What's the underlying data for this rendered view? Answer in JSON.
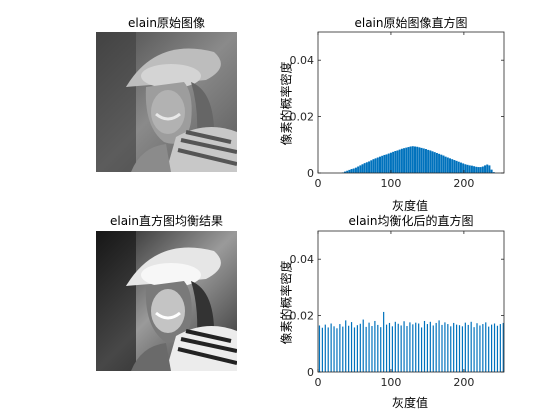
{
  "panels": {
    "original_image": {
      "title": "elain原始图像"
    },
    "equalized_image": {
      "title": "elain直方图均衡结果"
    }
  },
  "chart_data": [
    {
      "type": "bar",
      "title": "elain原始图像直方图",
      "xlabel": "灰度值",
      "ylabel": "像素的概率密度",
      "xlim": [
        0,
        255
      ],
      "ylim": [
        0,
        0.05
      ],
      "xticks": [
        0,
        100,
        200
      ],
      "yticks": [
        0,
        0.02,
        0.04
      ],
      "ytick_labels": [
        "0",
        "0.02",
        "0.04"
      ],
      "color": "#0072BD",
      "grid": false,
      "x": [
        34,
        37,
        40,
        43,
        46,
        49,
        52,
        55,
        58,
        61,
        64,
        67,
        70,
        73,
        76,
        79,
        82,
        85,
        88,
        91,
        94,
        97,
        100,
        103,
        106,
        109,
        112,
        115,
        118,
        121,
        124,
        127,
        130,
        133,
        136,
        139,
        142,
        145,
        148,
        151,
        154,
        157,
        160,
        163,
        166,
        169,
        172,
        175,
        178,
        181,
        184,
        187,
        190,
        193,
        196,
        199,
        202,
        205,
        208,
        211,
        214,
        217,
        220,
        223,
        226,
        229,
        232,
        235,
        238,
        241
      ],
      "values": [
        0.0002,
        0.0005,
        0.0008,
        0.0011,
        0.0014,
        0.0016,
        0.0019,
        0.0023,
        0.0027,
        0.0031,
        0.0035,
        0.0038,
        0.0041,
        0.0045,
        0.0049,
        0.0052,
        0.0055,
        0.0058,
        0.0061,
        0.0064,
        0.0066,
        0.0069,
        0.0072,
        0.0075,
        0.0078,
        0.008,
        0.0083,
        0.0086,
        0.0088,
        0.009,
        0.0092,
        0.0094,
        0.0095,
        0.0094,
        0.0093,
        0.0091,
        0.0089,
        0.0087,
        0.0085,
        0.0082,
        0.008,
        0.0077,
        0.0074,
        0.0071,
        0.0068,
        0.0065,
        0.0062,
        0.0058,
        0.0055,
        0.0052,
        0.0049,
        0.0046,
        0.0043,
        0.004,
        0.0037,
        0.0034,
        0.0031,
        0.0029,
        0.0027,
        0.0026,
        0.0024,
        0.0022,
        0.0021,
        0.0021,
        0.0023,
        0.0027,
        0.003,
        0.0027,
        0.0012,
        0.0003
      ]
    },
    {
      "type": "bar",
      "title": "elain均衡化后的直方图",
      "xlabel": "灰度值",
      "ylabel": "像素的概率密度",
      "xlim": [
        0,
        255
      ],
      "ylim": [
        0,
        0.05
      ],
      "xticks": [
        0,
        100,
        200
      ],
      "yticks": [
        0,
        0.02,
        0.04
      ],
      "ytick_labels": [
        "0",
        "0.02",
        "0.04"
      ],
      "color": "#0072BD",
      "grid": false,
      "x": [
        2,
        6,
        10,
        14,
        18,
        22,
        26,
        30,
        34,
        38,
        42,
        46,
        50,
        54,
        58,
        62,
        66,
        70,
        74,
        78,
        82,
        86,
        90,
        94,
        98,
        102,
        106,
        110,
        114,
        118,
        122,
        126,
        130,
        134,
        138,
        142,
        146,
        150,
        154,
        158,
        162,
        166,
        170,
        174,
        178,
        182,
        186,
        190,
        194,
        198,
        202,
        206,
        210,
        214,
        218,
        222,
        226,
        230,
        234,
        238,
        242,
        246,
        250,
        254
      ],
      "values": [
        0.0165,
        0.0157,
        0.0168,
        0.0158,
        0.0172,
        0.0162,
        0.0155,
        0.017,
        0.0161,
        0.0183,
        0.0164,
        0.0177,
        0.0158,
        0.0166,
        0.0171,
        0.0186,
        0.016,
        0.0175,
        0.0163,
        0.0181,
        0.0167,
        0.0159,
        0.0213,
        0.0168,
        0.0174,
        0.0162,
        0.0178,
        0.0171,
        0.0165,
        0.018,
        0.0163,
        0.0176,
        0.0169,
        0.0175,
        0.0172,
        0.0158,
        0.0181,
        0.017,
        0.0178,
        0.0165,
        0.0174,
        0.0183,
        0.0167,
        0.0176,
        0.017,
        0.0162,
        0.0174,
        0.0168,
        0.0166,
        0.0162,
        0.0175,
        0.0167,
        0.0178,
        0.0159,
        0.0173,
        0.0165,
        0.017,
        0.0176,
        0.0161,
        0.0168,
        0.0172,
        0.0164,
        0.017,
        0.0174
      ]
    }
  ]
}
